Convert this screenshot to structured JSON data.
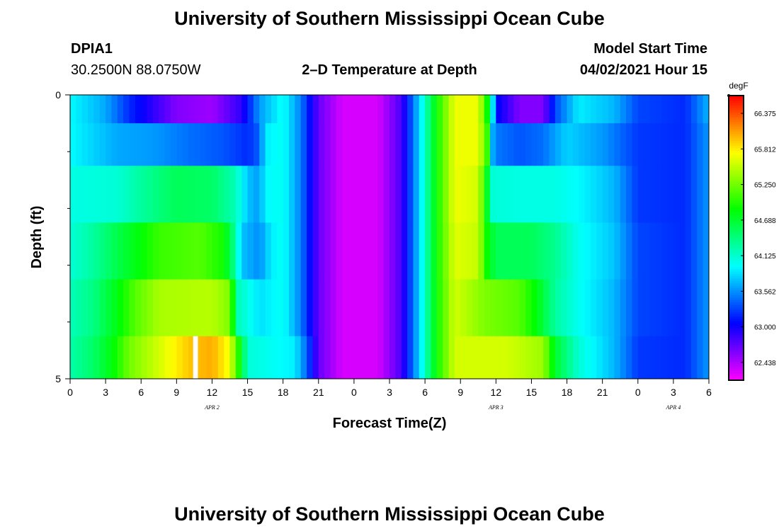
{
  "header": {
    "title": "University of Southern Mississippi Ocean Cube",
    "station_id": "DPIA1",
    "station_coords": "30.2500N  88.0750W",
    "plot_title": "2–D Temperature at Depth",
    "model_start_label": "Model Start Time",
    "model_start_value": "04/02/2021 Hour 15"
  },
  "footer": {
    "title": "University of Southern Mississippi Ocean Cube"
  },
  "chart_data": {
    "type": "heatmap",
    "title": "2–D Temperature at Depth",
    "xlabel": "Forecast Time(Z)",
    "ylabel": "Depth (ft)",
    "x_hours_from_apr2_00z": [
      0,
      54
    ],
    "x_ticks": [
      {
        "hour": 0,
        "label": "0"
      },
      {
        "hour": 3,
        "label": "3"
      },
      {
        "hour": 6,
        "label": "6"
      },
      {
        "hour": 9,
        "label": "9"
      },
      {
        "hour": 12,
        "label": "12"
      },
      {
        "hour": 15,
        "label": "15"
      },
      {
        "hour": 18,
        "label": "18"
      },
      {
        "hour": 21,
        "label": "21"
      },
      {
        "hour": 24,
        "label": "0"
      },
      {
        "hour": 27,
        "label": "3"
      },
      {
        "hour": 30,
        "label": "6"
      },
      {
        "hour": 33,
        "label": "9"
      },
      {
        "hour": 36,
        "label": "12"
      },
      {
        "hour": 39,
        "label": "15"
      },
      {
        "hour": 42,
        "label": "18"
      },
      {
        "hour": 45,
        "label": "21"
      },
      {
        "hour": 48,
        "label": "0"
      },
      {
        "hour": 51,
        "label": "3"
      },
      {
        "hour": 54,
        "label": "6"
      }
    ],
    "date_labels": [
      {
        "hour": 12,
        "label": "APR 2"
      },
      {
        "hour": 36,
        "label": "APR 3"
      },
      {
        "hour": 51,
        "label": "APR 4"
      }
    ],
    "y_range_ft": [
      0,
      5
    ],
    "y_tick_labels": [
      {
        "depth": 0,
        "label": "0"
      },
      {
        "depth": 5,
        "label": "5"
      }
    ],
    "y_minor_ticks": [
      1,
      2,
      3,
      4
    ],
    "depth_rows": [
      0.25,
      0.75,
      1.75,
      2.75,
      3.75,
      4.75
    ],
    "colorbar": {
      "unit": "degF",
      "min": 62.156,
      "max": 66.656,
      "tick_values": [
        62.438,
        63.0,
        63.562,
        64.125,
        64.688,
        65.25,
        65.812,
        66.375
      ],
      "tick_labels": [
        "62.438",
        "63.000",
        "63.562",
        "64.125",
        "64.688",
        "65.250",
        "65.812",
        "66.375"
      ]
    },
    "series": [
      {
        "name": "depth 0-0.5 ft",
        "values": [
          {
            "h": 0,
            "v": 63.95
          },
          {
            "h": 3,
            "v": 63.65
          },
          {
            "h": 5,
            "v": 63.2
          },
          {
            "h": 9,
            "v": 62.6
          },
          {
            "h": 12,
            "v": 62.5
          },
          {
            "h": 14.5,
            "v": 62.9
          },
          {
            "h": 16,
            "v": 63.6
          },
          {
            "h": 18,
            "v": 64.0
          },
          {
            "h": 19.5,
            "v": 63.5
          },
          {
            "h": 21,
            "v": 62.7
          },
          {
            "h": 23,
            "v": 62.3
          },
          {
            "h": 26,
            "v": 62.3
          },
          {
            "h": 28,
            "v": 62.8
          },
          {
            "h": 29.5,
            "v": 63.8
          },
          {
            "h": 31,
            "v": 64.9
          },
          {
            "h": 32.5,
            "v": 65.7
          },
          {
            "h": 34.5,
            "v": 65.7
          },
          {
            "h": 35.5,
            "v": 64.6
          },
          {
            "h": 36,
            "v": 63.1
          },
          {
            "h": 38,
            "v": 62.6
          },
          {
            "h": 40,
            "v": 62.6
          },
          {
            "h": 41,
            "v": 63.3
          },
          {
            "h": 43,
            "v": 63.9
          },
          {
            "h": 46,
            "v": 63.7
          },
          {
            "h": 48,
            "v": 63.3
          },
          {
            "h": 52,
            "v": 63.2
          },
          {
            "h": 54,
            "v": 63.7
          }
        ]
      },
      {
        "name": "depth 0.5-1.5 ft",
        "values": [
          {
            "h": 0,
            "v": 63.95
          },
          {
            "h": 4,
            "v": 63.65
          },
          {
            "h": 7,
            "v": 63.6
          },
          {
            "h": 10,
            "v": 63.45
          },
          {
            "h": 13,
            "v": 63.35
          },
          {
            "h": 15,
            "v": 63.2
          },
          {
            "h": 16,
            "v": 63.4
          },
          {
            "h": 16.5,
            "v": 63.9
          },
          {
            "h": 18,
            "v": 64.0
          },
          {
            "h": 19.5,
            "v": 63.5
          },
          {
            "h": 21,
            "v": 62.7
          },
          {
            "h": 23,
            "v": 62.3
          },
          {
            "h": 26,
            "v": 62.3
          },
          {
            "h": 28,
            "v": 62.8
          },
          {
            "h": 29.5,
            "v": 63.8
          },
          {
            "h": 31,
            "v": 64.9
          },
          {
            "h": 32.5,
            "v": 65.7
          },
          {
            "h": 34.5,
            "v": 65.7
          },
          {
            "h": 35.3,
            "v": 65.0
          },
          {
            "h": 35.8,
            "v": 63.5
          },
          {
            "h": 38,
            "v": 63.35
          },
          {
            "h": 40,
            "v": 63.45
          },
          {
            "h": 42,
            "v": 63.8
          },
          {
            "h": 45,
            "v": 63.6
          },
          {
            "h": 48,
            "v": 63.25
          },
          {
            "h": 52,
            "v": 63.2
          },
          {
            "h": 54,
            "v": 63.6
          }
        ]
      },
      {
        "name": "depth 1.5-2.5 ft",
        "values": [
          {
            "h": 0,
            "v": 64.05
          },
          {
            "h": 4,
            "v": 64.1
          },
          {
            "h": 6,
            "v": 64.3
          },
          {
            "h": 9,
            "v": 64.55
          },
          {
            "h": 12,
            "v": 64.5
          },
          {
            "h": 14,
            "v": 64.2
          },
          {
            "h": 15,
            "v": 63.75
          },
          {
            "h": 16,
            "v": 63.6
          },
          {
            "h": 16.5,
            "v": 63.95
          },
          {
            "h": 18,
            "v": 64.0
          },
          {
            "h": 19.5,
            "v": 63.5
          },
          {
            "h": 21,
            "v": 62.7
          },
          {
            "h": 23,
            "v": 62.3
          },
          {
            "h": 26,
            "v": 62.3
          },
          {
            "h": 28,
            "v": 62.8
          },
          {
            "h": 29.5,
            "v": 63.8
          },
          {
            "h": 31,
            "v": 64.9
          },
          {
            "h": 32.5,
            "v": 65.7
          },
          {
            "h": 34.5,
            "v": 65.6
          },
          {
            "h": 35.2,
            "v": 64.8
          },
          {
            "h": 35.6,
            "v": 64.1
          },
          {
            "h": 38,
            "v": 64.05
          },
          {
            "h": 41,
            "v": 64.05
          },
          {
            "h": 43,
            "v": 63.95
          },
          {
            "h": 46,
            "v": 63.7
          },
          {
            "h": 48,
            "v": 63.25
          },
          {
            "h": 52,
            "v": 63.2
          },
          {
            "h": 54,
            "v": 63.6
          }
        ]
      },
      {
        "name": "depth 2.5-3.5 ft",
        "values": [
          {
            "h": 0,
            "v": 64.1
          },
          {
            "h": 2,
            "v": 64.3
          },
          {
            "h": 4,
            "v": 64.6
          },
          {
            "h": 6,
            "v": 64.85
          },
          {
            "h": 7.5,
            "v": 65.05
          },
          {
            "h": 11,
            "v": 65.15
          },
          {
            "h": 13,
            "v": 64.9
          },
          {
            "h": 13.8,
            "v": 64.4
          },
          {
            "h": 14.5,
            "v": 63.75
          },
          {
            "h": 16,
            "v": 63.55
          },
          {
            "h": 17,
            "v": 63.9
          },
          {
            "h": 18,
            "v": 64.0
          },
          {
            "h": 19.5,
            "v": 63.5
          },
          {
            "h": 21,
            "v": 62.7
          },
          {
            "h": 23,
            "v": 62.3
          },
          {
            "h": 26,
            "v": 62.3
          },
          {
            "h": 28,
            "v": 62.8
          },
          {
            "h": 29.5,
            "v": 63.8
          },
          {
            "h": 31,
            "v": 64.9
          },
          {
            "h": 32.5,
            "v": 65.65
          },
          {
            "h": 34.5,
            "v": 65.55
          },
          {
            "h": 35.2,
            "v": 64.9
          },
          {
            "h": 36,
            "v": 64.55
          },
          {
            "h": 39,
            "v": 64.55
          },
          {
            "h": 41,
            "v": 64.35
          },
          {
            "h": 43,
            "v": 64.0
          },
          {
            "h": 46,
            "v": 63.75
          },
          {
            "h": 48,
            "v": 63.3
          },
          {
            "h": 52,
            "v": 63.2
          },
          {
            "h": 54,
            "v": 63.6
          }
        ]
      },
      {
        "name": "depth 3.5-4.5 ft",
        "values": [
          {
            "h": 0,
            "v": 64.2
          },
          {
            "h": 2,
            "v": 64.4
          },
          {
            "h": 4,
            "v": 64.8
          },
          {
            "h": 5.5,
            "v": 65.15
          },
          {
            "h": 7.5,
            "v": 65.45
          },
          {
            "h": 12,
            "v": 65.5
          },
          {
            "h": 13.5,
            "v": 65.3
          },
          {
            "h": 14.2,
            "v": 64.2
          },
          {
            "h": 16,
            "v": 63.85
          },
          {
            "h": 18,
            "v": 64.0
          },
          {
            "h": 19.5,
            "v": 63.5
          },
          {
            "h": 21,
            "v": 62.7
          },
          {
            "h": 23,
            "v": 62.3
          },
          {
            "h": 26,
            "v": 62.3
          },
          {
            "h": 28,
            "v": 62.8
          },
          {
            "h": 29.5,
            "v": 63.8
          },
          {
            "h": 31,
            "v": 64.9
          },
          {
            "h": 32.5,
            "v": 65.6
          },
          {
            "h": 35,
            "v": 65.3
          },
          {
            "h": 38,
            "v": 65.15
          },
          {
            "h": 39.5,
            "v": 64.8
          },
          {
            "h": 41,
            "v": 64.3
          },
          {
            "h": 43,
            "v": 64.0
          },
          {
            "h": 46,
            "v": 63.7
          },
          {
            "h": 48,
            "v": 63.3
          },
          {
            "h": 52,
            "v": 63.2
          },
          {
            "h": 54,
            "v": 63.6
          }
        ]
      },
      {
        "name": "depth 4.5-5 ft",
        "values": [
          {
            "h": 0,
            "v": 64.25
          },
          {
            "h": 2,
            "v": 64.5
          },
          {
            "h": 3.5,
            "v": 64.8
          },
          {
            "h": 5,
            "v": 65.25
          },
          {
            "h": 7.5,
            "v": 65.6
          },
          {
            "h": 10,
            "v": 65.95
          },
          {
            "h": 12,
            "v": 66.05
          },
          {
            "h": 13.5,
            "v": 65.7
          },
          {
            "h": 14.5,
            "v": 64.7
          },
          {
            "h": 15,
            "v": 64.1
          },
          {
            "h": 17,
            "v": 64.0
          },
          {
            "h": 19,
            "v": 63.9
          },
          {
            "h": 20,
            "v": 63.4
          },
          {
            "h": 21,
            "v": 62.7
          },
          {
            "h": 23,
            "v": 62.3
          },
          {
            "h": 26,
            "v": 62.3
          },
          {
            "h": 28,
            "v": 62.8
          },
          {
            "h": 29.5,
            "v": 63.8
          },
          {
            "h": 31,
            "v": 64.9
          },
          {
            "h": 32.5,
            "v": 65.6
          },
          {
            "h": 37,
            "v": 65.6
          },
          {
            "h": 40,
            "v": 65.4
          },
          {
            "h": 41,
            "v": 64.7
          },
          {
            "h": 43,
            "v": 64.1
          },
          {
            "h": 46,
            "v": 63.7
          },
          {
            "h": 48,
            "v": 63.25
          },
          {
            "h": 52,
            "v": 63.2
          },
          {
            "h": 54,
            "v": 63.6
          }
        ]
      }
    ],
    "annotations": [
      {
        "type": "missing-data-gap",
        "depth_row": 5,
        "hour_start": 10.4,
        "hour_end": 10.8
      }
    ]
  }
}
